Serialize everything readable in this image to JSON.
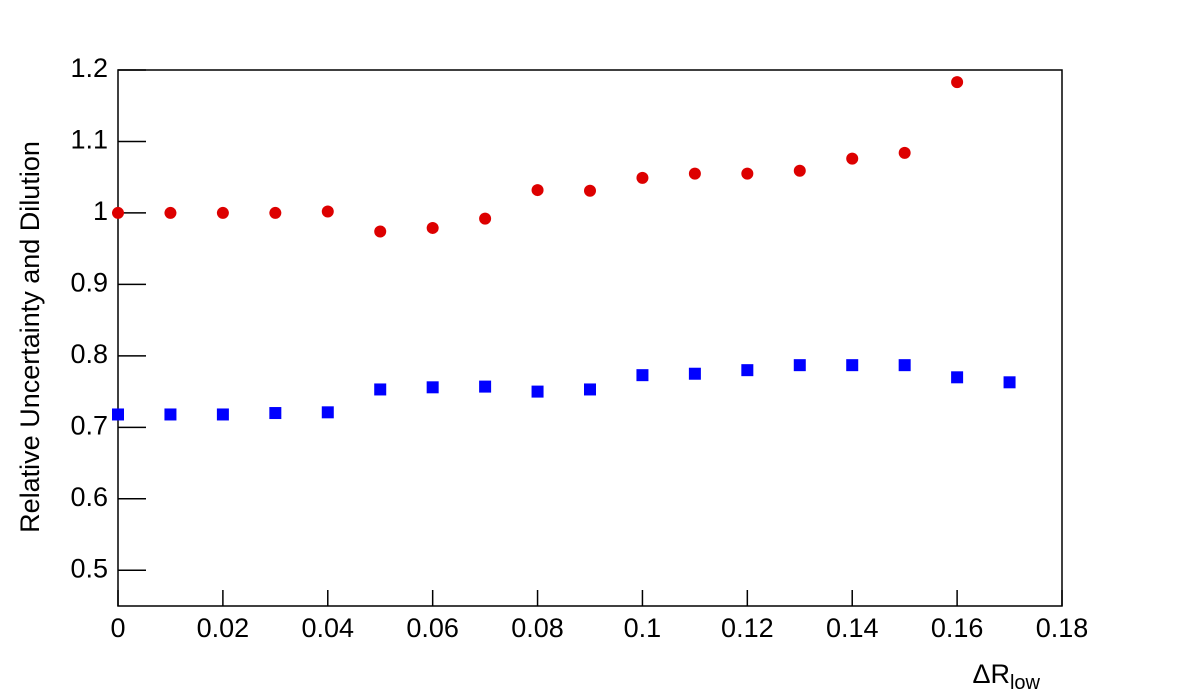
{
  "chart_data": {
    "type": "scatter",
    "ylabel": "Relative Uncertainty and Dilution",
    "xlabel": {
      "main": "ΔR",
      "sub": "low"
    },
    "xlim": [
      0,
      0.18
    ],
    "ylim": [
      0.45,
      1.2
    ],
    "xticks": [
      0,
      0.02,
      0.04,
      0.06,
      0.08,
      0.1,
      0.12,
      0.14,
      0.16,
      0.18
    ],
    "yticks": [
      0.5,
      0.6,
      0.7,
      0.8,
      0.9,
      1,
      1.1,
      1.2
    ],
    "grid": false,
    "series": [
      {
        "color": "#dd0000",
        "marker": "circle",
        "x": [
          0,
          0.01,
          0.02,
          0.03,
          0.04,
          0.05,
          0.06,
          0.07,
          0.08,
          0.09,
          0.1,
          0.11,
          0.12,
          0.13,
          0.14,
          0.15,
          0.16
        ],
        "values": [
          1.0,
          1.0,
          1.0,
          1.0,
          1.002,
          0.974,
          0.979,
          0.992,
          1.032,
          1.031,
          1.049,
          1.055,
          1.055,
          1.059,
          1.076,
          1.084,
          1.183
        ]
      },
      {
        "color": "#0000ff",
        "marker": "square",
        "x": [
          0,
          0.01,
          0.02,
          0.03,
          0.04,
          0.05,
          0.06,
          0.07,
          0.08,
          0.09,
          0.1,
          0.11,
          0.12,
          0.13,
          0.14,
          0.15,
          0.16,
          0.17
        ],
        "values": [
          0.718,
          0.718,
          0.718,
          0.72,
          0.721,
          0.753,
          0.756,
          0.757,
          0.75,
          0.753,
          0.773,
          0.775,
          0.78,
          0.787,
          0.787,
          0.787,
          0.77,
          0.763
        ]
      }
    ]
  }
}
